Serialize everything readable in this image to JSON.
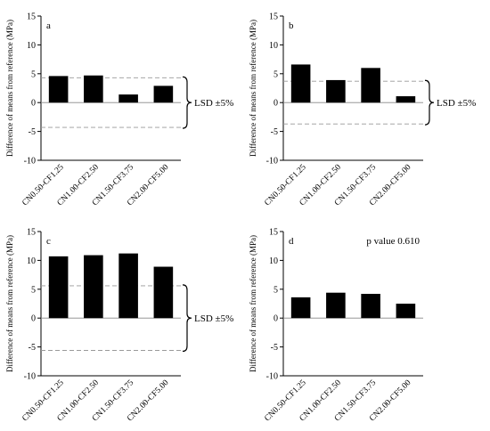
{
  "colors": {
    "bar": "#000000",
    "axis": "#000000",
    "zero_line": "#888888",
    "lsd_line": "#999999",
    "background": "#ffffff"
  },
  "chart_data": [
    {
      "panel": "a",
      "type": "bar",
      "ylabel": "Difference of means from reference (MPa)",
      "categories": [
        "CN0.50-CF1.25",
        "CN1.00-CF2.50",
        "CN1.50-CF3.75",
        "CN2.00-CF5.00"
      ],
      "values": [
        4.6,
        4.7,
        1.4,
        2.9
      ],
      "ylim": [
        -10,
        15
      ],
      "yticks": [
        -10,
        -5,
        0,
        5,
        10,
        15
      ],
      "lsd": 4.3,
      "annotation": "LSD ±5%",
      "grid": false
    },
    {
      "panel": "b",
      "type": "bar",
      "ylabel": "Difference of means from reference (MPa)",
      "categories": [
        "CN0.50-CF1.25",
        "CN1.00-CF2.50",
        "CN1.50-CF3.75",
        "CN2.00-CF5.00"
      ],
      "values": [
        6.6,
        3.9,
        6.0,
        1.1
      ],
      "ylim": [
        -10,
        15
      ],
      "yticks": [
        -10,
        -5,
        0,
        5,
        10,
        15
      ],
      "lsd": 3.7,
      "annotation": "LSD ±5%",
      "grid": false
    },
    {
      "panel": "c",
      "type": "bar",
      "ylabel": "Difference of means from reference (MPa)",
      "categories": [
        "CN0.50-CF1.25",
        "CN1.00-CF2.50",
        "CN1.50-CF3.75",
        "CN2.00-CF5.00"
      ],
      "values": [
        10.7,
        10.9,
        11.2,
        8.9
      ],
      "ylim": [
        -10,
        15
      ],
      "yticks": [
        -10,
        -5,
        0,
        5,
        10,
        15
      ],
      "lsd": 5.6,
      "annotation": "LSD ±5%",
      "grid": false
    },
    {
      "panel": "d",
      "type": "bar",
      "ylabel": "Difference of means from reference (MPa)",
      "categories": [
        "CN0.50-CF1.25",
        "CN1.00-CF2.50",
        "CN1.50-CF3.75",
        "CN2.00-CF5.00"
      ],
      "values": [
        3.6,
        4.4,
        4.2,
        2.5
      ],
      "ylim": [
        -10,
        15
      ],
      "yticks": [
        -10,
        -5,
        0,
        5,
        10,
        15
      ],
      "lsd": null,
      "annotation": "p value 0.610",
      "grid": false
    }
  ]
}
